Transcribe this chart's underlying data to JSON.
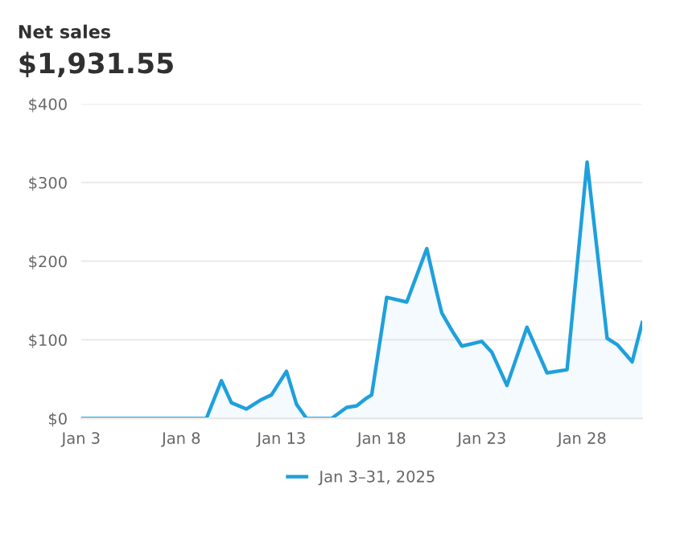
{
  "chart_data": {
    "type": "area",
    "title": "Net sales",
    "subtitle": "$1,931.55",
    "x": [
      "2025-01-03T00:00",
      "2025-01-09T06:00",
      "2025-01-10T00:00",
      "2025-01-10T12:00",
      "2025-01-11T06:00",
      "2025-01-12T00:00",
      "2025-01-12T12:00",
      "2025-01-13T06:00",
      "2025-01-13T18:00",
      "2025-01-14T06:00",
      "2025-01-15T12:00",
      "2025-01-16T06:00",
      "2025-01-16T18:00",
      "2025-01-17T06:00",
      "2025-01-17T12:00",
      "2025-01-18T06:00",
      "2025-01-19T06:00",
      "2025-01-20T06:00",
      "2025-01-20T18:00",
      "2025-01-21T00:00",
      "2025-01-21T12:00",
      "2025-01-22T00:00",
      "2025-01-23T00:00",
      "2025-01-23T12:00",
      "2025-01-24T06:00",
      "2025-01-25T06:00",
      "2025-01-26T06:00",
      "2025-01-27T06:00",
      "2025-01-28T06:00",
      "2025-01-29T06:00",
      "2025-01-29T18:00",
      "2025-01-30T12:00",
      "2025-01-31T00:00"
    ],
    "series": [
      {
        "name": "Jan 3–31, 2025",
        "color": "#1fa0dc",
        "values": [
          0,
          0,
          48,
          20,
          12,
          24,
          30,
          60,
          18,
          0,
          0,
          14,
          16,
          26,
          30,
          154,
          148,
          216,
          160,
          134,
          112,
          92,
          98,
          84,
          42,
          116,
          58,
          62,
          326,
          102,
          94,
          72,
          122
        ]
      }
    ],
    "xlim": [
      "2025-01-03T00:00",
      "2025-01-31T00:00"
    ],
    "xticks": [
      {
        "value": "2025-01-03",
        "label": "Jan 3"
      },
      {
        "value": "2025-01-08",
        "label": "Jan 8"
      },
      {
        "value": "2025-01-13",
        "label": "Jan 13"
      },
      {
        "value": "2025-01-18",
        "label": "Jan 18"
      },
      {
        "value": "2025-01-23",
        "label": "Jan 23"
      },
      {
        "value": "2025-01-28",
        "label": "Jan 28"
      }
    ],
    "ylim": [
      0,
      400
    ],
    "yticks": [
      {
        "value": 0,
        "label": "$0"
      },
      {
        "value": 100,
        "label": "$100"
      },
      {
        "value": 200,
        "label": "$200"
      },
      {
        "value": 300,
        "label": "$300"
      },
      {
        "value": 400,
        "label": "$400"
      }
    ],
    "grid": "y",
    "legend": "bottom",
    "line_style": "solid",
    "marker": "none"
  }
}
